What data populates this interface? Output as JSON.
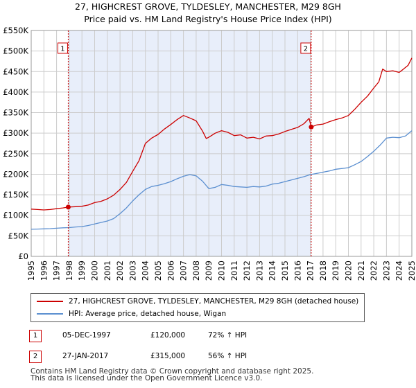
{
  "chart_data": {
    "type": "line",
    "title": "27, HIGHCREST GROVE, TYLDESLEY, MANCHESTER, M29 8GH",
    "subtitle": "Price paid vs. HM Land Registry's House Price Index (HPI)",
    "xlim": [
      1995,
      2025
    ],
    "ylim": [
      0,
      550000
    ],
    "x_ticks": [
      "1995",
      "1996",
      "1997",
      "1998",
      "1999",
      "2000",
      "2001",
      "2002",
      "2003",
      "2004",
      "2005",
      "2006",
      "2007",
      "2008",
      "2009",
      "2010",
      "2011",
      "2012",
      "2013",
      "2014",
      "2015",
      "2016",
      "2017",
      "2018",
      "2019",
      "2020",
      "2021",
      "2022",
      "2023",
      "2024",
      "2025"
    ],
    "y_ticks": [
      {
        "value": 0,
        "label": "£0"
      },
      {
        "value": 50000,
        "label": "£50K"
      },
      {
        "value": 100000,
        "label": "£100K"
      },
      {
        "value": 150000,
        "label": "£150K"
      },
      {
        "value": 200000,
        "label": "£200K"
      },
      {
        "value": 250000,
        "label": "£250K"
      },
      {
        "value": 300000,
        "label": "£300K"
      },
      {
        "value": 350000,
        "label": "£350K"
      },
      {
        "value": 400000,
        "label": "£400K"
      },
      {
        "value": 450000,
        "label": "£450K"
      },
      {
        "value": 500000,
        "label": "£500K"
      },
      {
        "value": 550000,
        "label": "£550K"
      }
    ],
    "grid": true,
    "shaded_region": [
      1997.92,
      2017.07
    ],
    "series": [
      {
        "name": "27, HIGHCREST GROVE, TYLDESLEY, MANCHESTER, M29 8GH (detached house)",
        "color": "#cc0000",
        "x": [
          1995.0,
          1995.5,
          1996.0,
          1996.5,
          1997.0,
          1997.5,
          1997.92,
          1998.5,
          1999.0,
          1999.5,
          2000.0,
          2000.5,
          2001.0,
          2001.5,
          2002.0,
          2002.5,
          2003.0,
          2003.5,
          2004.0,
          2004.5,
          2005.0,
          2005.5,
          2006.0,
          2006.5,
          2007.0,
          2007.5,
          2008.0,
          2008.5,
          2008.8,
          2009.0,
          2009.5,
          2010.0,
          2010.5,
          2011.0,
          2011.5,
          2012.0,
          2012.5,
          2013.0,
          2013.5,
          2014.0,
          2014.5,
          2015.0,
          2015.5,
          2016.0,
          2016.5,
          2016.9,
          2017.07,
          2017.5,
          2018.0,
          2018.5,
          2019.0,
          2019.5,
          2020.0,
          2020.5,
          2021.0,
          2021.5,
          2022.0,
          2022.4,
          2022.7,
          2023.0,
          2023.5,
          2024.0,
          2024.3,
          2024.7,
          2025.0
        ],
        "values": [
          115000,
          114000,
          113000,
          114000,
          116000,
          118000,
          120000,
          121000,
          122000,
          125000,
          131000,
          134000,
          140000,
          149000,
          163000,
          180000,
          207000,
          233000,
          275000,
          288000,
          297000,
          310000,
          321000,
          333000,
          343000,
          337000,
          330000,
          305000,
          287000,
          290000,
          300000,
          306000,
          302000,
          294000,
          296000,
          288000,
          290000,
          286000,
          293000,
          294000,
          298000,
          304000,
          309000,
          314000,
          323000,
          336000,
          315000,
          320000,
          322000,
          328000,
          333000,
          337000,
          343000,
          358000,
          375000,
          390000,
          410000,
          425000,
          456000,
          450000,
          452000,
          448000,
          455000,
          465000,
          483000
        ]
      },
      {
        "name": "HPI: Average price, detached house, Wigan",
        "color": "#5b8fd0",
        "x": [
          1995.0,
          1995.5,
          1996.0,
          1996.5,
          1997.0,
          1997.5,
          1998.0,
          1998.5,
          1999.0,
          1999.5,
          2000.0,
          2000.5,
          2001.0,
          2001.5,
          2002.0,
          2002.5,
          2003.0,
          2003.5,
          2004.0,
          2004.5,
          2005.0,
          2005.5,
          2006.0,
          2006.5,
          2007.0,
          2007.5,
          2008.0,
          2008.5,
          2009.0,
          2009.5,
          2010.0,
          2010.5,
          2011.0,
          2011.5,
          2012.0,
          2012.5,
          2013.0,
          2013.5,
          2014.0,
          2014.5,
          2015.0,
          2015.5,
          2016.0,
          2016.5,
          2017.0,
          2017.5,
          2018.0,
          2018.5,
          2019.0,
          2019.5,
          2020.0,
          2020.5,
          2021.0,
          2021.5,
          2022.0,
          2022.5,
          2023.0,
          2023.5,
          2024.0,
          2024.5,
          2025.0
        ],
        "values": [
          66000,
          66500,
          67000,
          67500,
          68500,
          69500,
          70000,
          71500,
          72500,
          75000,
          79000,
          82500,
          86000,
          92000,
          104000,
          118000,
          135000,
          150000,
          163000,
          170000,
          173000,
          177000,
          182000,
          189000,
          195000,
          199000,
          196000,
          183000,
          165000,
          168000,
          175000,
          173000,
          170000,
          169000,
          168000,
          170000,
          169000,
          171000,
          176000,
          178000,
          182000,
          186000,
          190000,
          194000,
          199000,
          202000,
          205000,
          208000,
          212000,
          214000,
          216000,
          223000,
          231000,
          243000,
          256000,
          271000,
          288000,
          290000,
          289000,
          293000,
          306000
        ]
      }
    ],
    "annotations": [
      {
        "label": "1",
        "x": 1997.92,
        "y": 120000
      },
      {
        "label": "2",
        "x": 2017.07,
        "y": 315000
      }
    ]
  },
  "legend": {
    "property_label": "27, HIGHCREST GROVE, TYLDESLEY, MANCHESTER, M29 8GH (detached house)",
    "hpi_label": "HPI: Average price, detached house, Wigan"
  },
  "sales": [
    {
      "num": "1",
      "date": "05-DEC-1997",
      "price": "£120,000",
      "hpi": "72% ↑ HPI"
    },
    {
      "num": "2",
      "date": "27-JAN-2017",
      "price": "£315,000",
      "hpi": "56% ↑ HPI"
    }
  ],
  "footer": {
    "line1": "Contains HM Land Registry data © Crown copyright and database right 2025.",
    "line2": "This data is licensed under the Open Government Licence v3.0."
  },
  "colors": {
    "property": "#cc0000",
    "hpi": "#5b8fd0",
    "shade": "#e8eefa",
    "grid": "#cccccc"
  }
}
